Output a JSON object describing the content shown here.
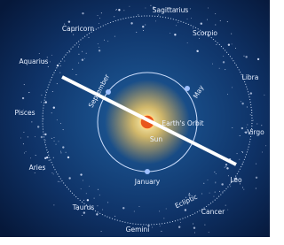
{
  "constellations": [
    "Capricorn",
    "Sagittarius",
    "Scorpio",
    "Libra",
    "Virgo",
    "Leo",
    "Cancer",
    "Gemini",
    "Taurus",
    "Aries",
    "Pisces",
    "Aquarius"
  ],
  "months": [
    "September",
    "May",
    "January"
  ],
  "orbit": "Earth's Orbit",
  "sun": "Sun",
  "ecliptic": "Ecliptic"
}
